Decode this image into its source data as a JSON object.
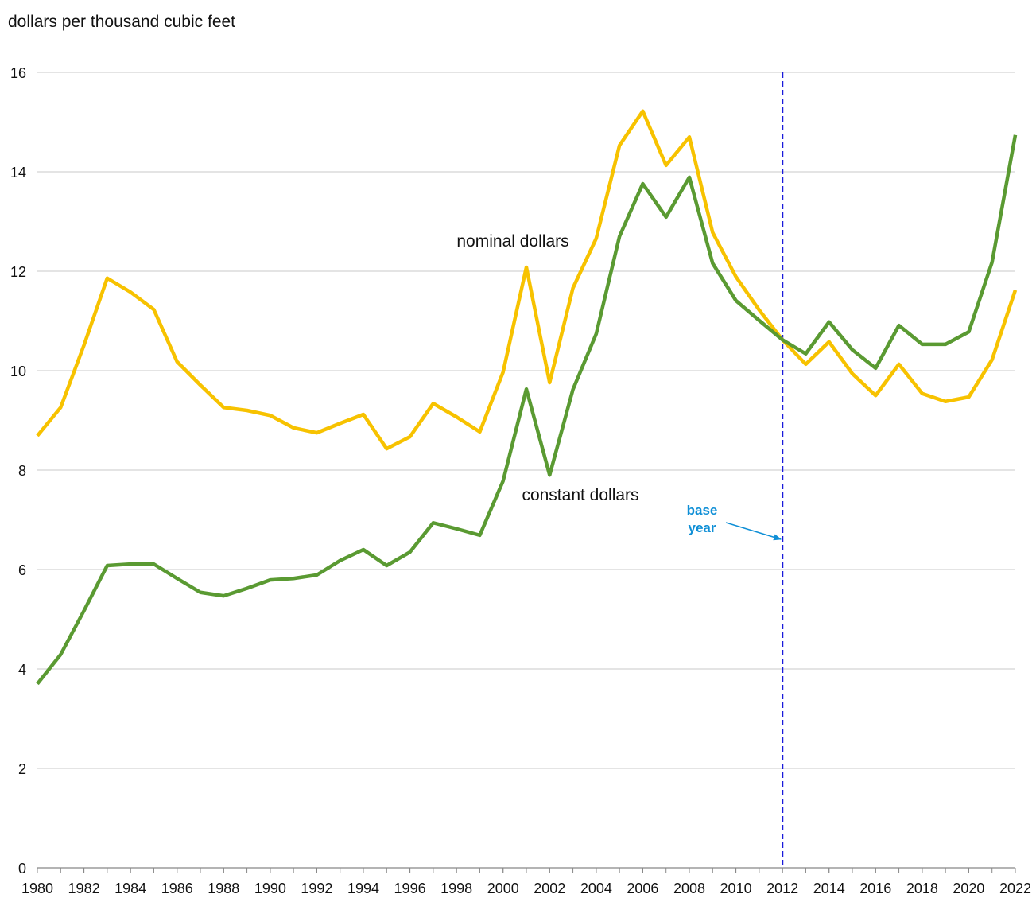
{
  "chart_data": {
    "type": "line",
    "y_axis_label": "dollars per thousand cubic feet",
    "x": [
      1980,
      1981,
      1982,
      1983,
      1984,
      1985,
      1986,
      1987,
      1988,
      1989,
      1990,
      1991,
      1992,
      1993,
      1994,
      1995,
      1996,
      1997,
      1998,
      1999,
      2000,
      2001,
      2002,
      2003,
      2004,
      2005,
      2006,
      2007,
      2008,
      2009,
      2010,
      2011,
      2012,
      2013,
      2014,
      2015,
      2016,
      2017,
      2018,
      2019,
      2020,
      2021,
      2022
    ],
    "series": [
      {
        "name": "nominal dollars",
        "color": "#f7c200",
        "values": [
          8.69,
          9.26,
          10.51,
          11.86,
          11.58,
          11.23,
          10.18,
          9.71,
          9.26,
          9.2,
          9.1,
          8.85,
          8.75,
          8.94,
          9.12,
          8.43,
          8.67,
          9.34,
          9.07,
          8.77,
          9.97,
          12.08,
          9.76,
          11.66,
          12.66,
          14.53,
          15.22,
          14.13,
          14.7,
          12.78,
          11.89,
          11.22,
          10.62,
          10.13,
          10.58,
          9.94,
          9.5,
          10.13,
          9.54,
          9.38,
          9.47,
          10.22,
          11.62
        ]
      },
      {
        "name": "constant dollars",
        "color": "#5a9a32",
        "values": [
          3.7,
          4.29,
          5.17,
          6.08,
          6.11,
          6.11,
          5.82,
          5.54,
          5.47,
          5.62,
          5.79,
          5.82,
          5.89,
          6.18,
          6.4,
          6.08,
          6.35,
          6.94,
          6.82,
          6.69,
          7.78,
          9.63,
          7.9,
          9.62,
          10.74,
          12.7,
          13.76,
          13.09,
          13.89,
          12.16,
          11.41,
          11.01,
          10.62,
          10.34,
          10.98,
          10.42,
          10.05,
          10.91,
          10.53,
          10.53,
          10.78,
          12.18,
          14.74
        ]
      }
    ],
    "xlim": [
      1980,
      2022
    ],
    "xticks": [
      1980,
      1982,
      1984,
      1986,
      1988,
      1990,
      1992,
      1994,
      1996,
      1998,
      2000,
      2002,
      2004,
      2006,
      2008,
      2010,
      2012,
      2014,
      2016,
      2018,
      2020,
      2022
    ],
    "ylim": [
      0,
      16
    ],
    "yticks": [
      0,
      2,
      4,
      6,
      8,
      10,
      12,
      14,
      16
    ],
    "grid": true,
    "reference_line": {
      "x": 2012,
      "color": "#1a1adb",
      "label": [
        "base",
        "year"
      ],
      "label_color": "#0f8fd6"
    }
  }
}
